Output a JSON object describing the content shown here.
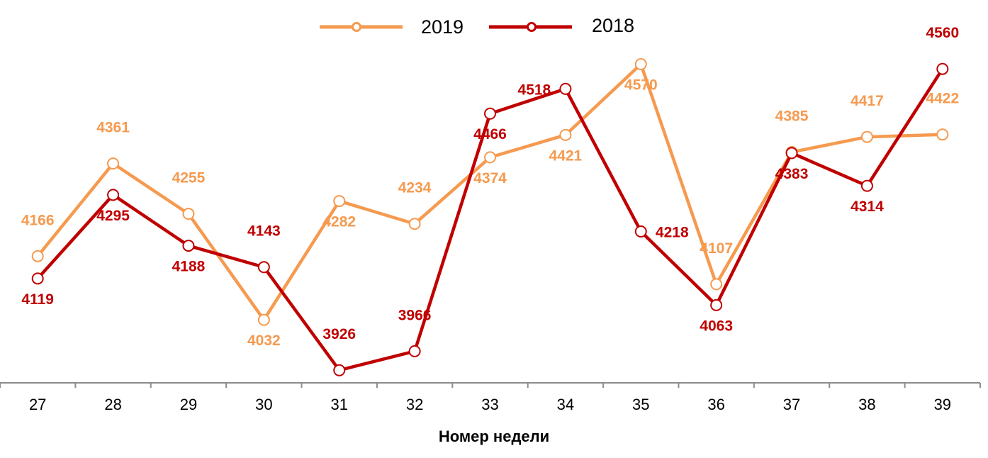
{
  "chart_data": {
    "type": "line",
    "title": "",
    "xlabel": "Номер недели",
    "ylabel": "",
    "categories": [
      "27",
      "28",
      "29",
      "30",
      "31",
      "32",
      "33",
      "34",
      "35",
      "36",
      "37",
      "38",
      "39"
    ],
    "ylim": [
      3895,
      4705
    ],
    "grid": false,
    "legend_position": "top-center",
    "series": [
      {
        "name": "2019",
        "color": "#F59A4F",
        "values": [
          4166,
          4361,
          4255,
          4032,
          4282,
          4234,
          4374,
          4421,
          4570,
          4107,
          4385,
          4417,
          4422
        ],
        "label_positions": [
          "above",
          "above",
          "above",
          "below",
          "below",
          "above",
          "below",
          "below",
          "below",
          "above",
          "above",
          "above",
          "above"
        ]
      },
      {
        "name": "2018",
        "color": "#C00000",
        "values": [
          4119,
          4295,
          4188,
          4143,
          3926,
          3966,
          4466,
          4518,
          4218,
          4063,
          4383,
          4314,
          4560
        ],
        "label_positions": [
          "below",
          "below",
          "below",
          "above",
          "above",
          "above",
          "below",
          "left",
          "right",
          "below",
          "below",
          "below",
          "above"
        ]
      }
    ]
  }
}
